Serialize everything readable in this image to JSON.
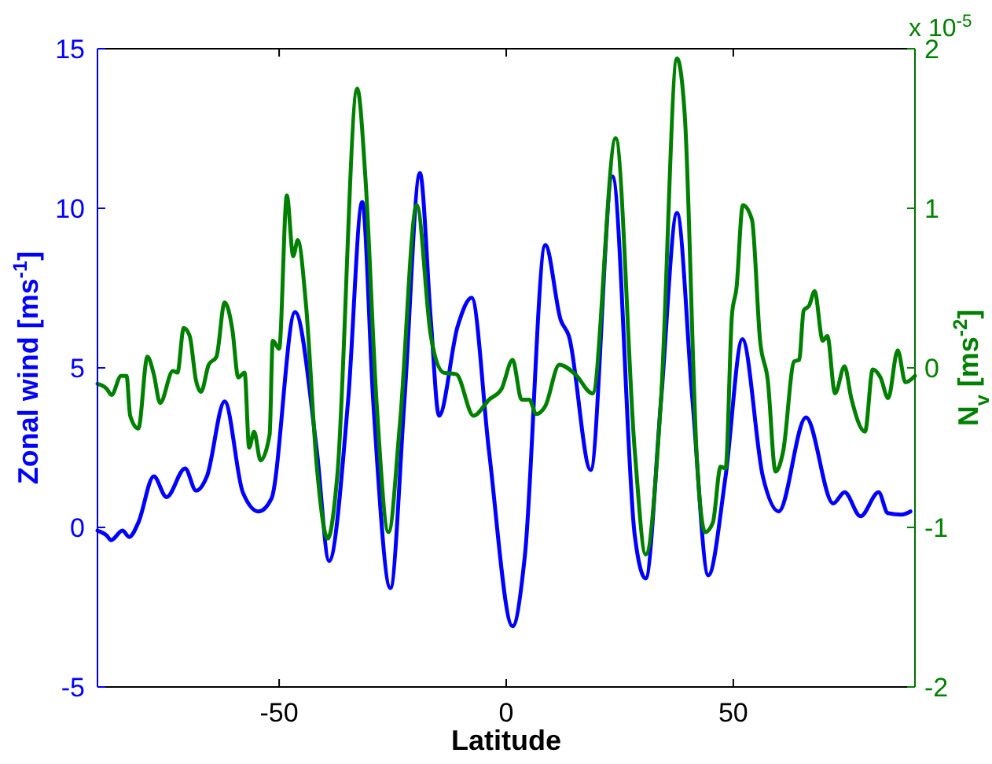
{
  "chart_data": {
    "type": "line",
    "xlabel": "Latitude",
    "ylabel": "Zonal wind [ms$^{-1}$]",
    "y2label": "N$_{v}$ [ms$^{-2}$]",
    "annotations": [
      "x 10$^{-5}$"
    ],
    "xlim": [
      -90,
      90
    ],
    "xticks": [
      -50,
      0,
      50
    ],
    "ylim": [
      -5,
      15
    ],
    "yticks": [
      -5,
      0,
      5,
      10,
      15
    ],
    "y2lim": [
      -2,
      2
    ],
    "y2ticks": [
      -2,
      -1,
      0,
      1,
      2
    ],
    "grid": false,
    "line_style": "solid",
    "marker": "none",
    "series": [
      {
        "color": "#0000ff",
        "x": [
          -90,
          -88,
          -87,
          -84.5,
          -83,
          -81,
          -77.6,
          -74.8,
          -70.7,
          -68.3,
          -65.9,
          -62,
          -58,
          -54.5,
          -51.7,
          -46.5,
          -41.7,
          -39,
          -34.8,
          -31.7,
          -29.3,
          -25.5,
          -22.4,
          -19,
          -16.6,
          -14.8,
          -10.7,
          -7.6,
          -3.8,
          1.4,
          4.1,
          8.6,
          12,
          13.8,
          18.6,
          23.4,
          28.3,
          30.7,
          34.1,
          37.6,
          41,
          44.5,
          48.3,
          52,
          56.5,
          60,
          66,
          72,
          74.5,
          78,
          82,
          84,
          87,
          89
        ],
        "values": [
          -0.1,
          -0.25,
          -0.4,
          -0.1,
          -0.3,
          0.15,
          1.6,
          0.95,
          1.85,
          1.15,
          1.6,
          3.95,
          1.1,
          0.5,
          0.9,
          6.75,
          2.4,
          -1.05,
          4.0,
          10.2,
          4.0,
          -1.9,
          4.0,
          11.1,
          6.5,
          3.5,
          6.3,
          7.2,
          2.4,
          -3.1,
          -0.9,
          8.85,
          6.5,
          6.0,
          1.8,
          11.0,
          -0.25,
          -1.6,
          4.0,
          9.85,
          4.0,
          -1.5,
          1.6,
          5.9,
          1.6,
          0.5,
          3.45,
          0.75,
          1.1,
          0.35,
          1.1,
          0.45,
          0.4,
          0.5
        ]
      },
      {
        "color": "#008000",
        "axis": "y2",
        "x": [
          -90,
          -88,
          -86.9,
          -84.8,
          -83.6,
          -82.8,
          -81,
          -79,
          -77.6,
          -76.2,
          -73.4,
          -72.4,
          -71,
          -69.7,
          -68.3,
          -67.2,
          -65.5,
          -63.8,
          -62,
          -60.3,
          -59,
          -57.6,
          -56.6,
          -55.5,
          -54.1,
          -52.1,
          -51.4,
          -50,
          -48.3,
          -46.9,
          -45.9,
          -44.1,
          -41.7,
          -39.3,
          -37.2,
          -32.8,
          -31,
          -28.6,
          -25.9,
          -23.4,
          -19.7,
          -16.6,
          -13.8,
          -11,
          -7.2,
          -3.8,
          -1,
          1.4,
          3.4,
          5.1,
          6.6,
          8.6,
          11.7,
          15.2,
          19,
          24.1,
          28.3,
          30.7,
          34.1,
          37.6,
          39.3,
          42,
          43.8,
          45.5,
          47.2,
          48.3,
          49.7,
          50.7,
          52.1,
          54.1,
          55.9,
          57.6,
          59.3,
          61,
          63.4,
          64.5,
          65.5,
          66.7,
          67.9,
          69.7,
          70.7,
          72.4,
          74.5,
          75.9,
          79,
          80.7,
          82.4,
          84.1,
          86.2,
          87.9,
          90
        ],
        "values": [
          -0.1,
          -0.13,
          -0.17,
          -0.05,
          -0.05,
          -0.3,
          -0.38,
          0.07,
          -0.04,
          -0.22,
          -0.02,
          -0.03,
          0.25,
          0.2,
          -0.08,
          -0.15,
          0.02,
          0.07,
          0.41,
          0.24,
          -0.06,
          -0.03,
          -0.5,
          -0.4,
          -0.58,
          -0.42,
          0.17,
          0.12,
          1.08,
          0.7,
          0.8,
          0.4,
          -0.62,
          -1.07,
          -0.68,
          1.75,
          1.19,
          -0.19,
          -1.03,
          -0.35,
          1.02,
          0.2,
          -0.03,
          -0.04,
          -0.3,
          -0.2,
          -0.13,
          0.05,
          -0.2,
          -0.2,
          -0.29,
          -0.24,
          0.02,
          -0.04,
          -0.16,
          1.44,
          -0.52,
          -1.17,
          -0.19,
          1.94,
          1.59,
          -0.58,
          -1.03,
          -0.97,
          -0.62,
          -0.63,
          0.33,
          0.5,
          1.02,
          0.93,
          0.17,
          -0.08,
          -0.65,
          -0.52,
          0.04,
          0.05,
          0.36,
          0.39,
          0.48,
          0.17,
          0.2,
          -0.16,
          0.01,
          -0.18,
          -0.4,
          -0.01,
          -0.06,
          -0.19,
          0.11,
          -0.09,
          -0.05
        ]
      }
    ]
  }
}
